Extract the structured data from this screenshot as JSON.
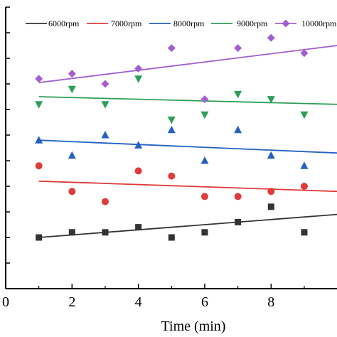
{
  "chart_data": {
    "type": "scatter",
    "title": "",
    "xlabel": "Time (min)",
    "ylabel": "",
    "xlim": [
      0,
      10
    ],
    "ylim": [
      0,
      11
    ],
    "x_ticks": [
      "0",
      "2",
      "4",
      "6",
      "8"
    ],
    "grid": false,
    "legend_position": "top",
    "series": [
      {
        "name": "6000rpm",
        "color": "#333333",
        "marker": "square",
        "x": [
          1,
          2,
          3,
          4,
          5,
          6,
          7,
          8,
          9
        ],
        "y": [
          2.0,
          2.2,
          2.2,
          2.4,
          2.0,
          2.2,
          2.6,
          3.2,
          2.2
        ],
        "fit": [
          2.0,
          2.9
        ]
      },
      {
        "name": "7000rpm",
        "color": "#e03a3a",
        "marker": "circle",
        "x": [
          1,
          2,
          3,
          4,
          5,
          6,
          7,
          8,
          9
        ],
        "y": [
          4.8,
          3.8,
          3.4,
          4.6,
          4.4,
          3.6,
          3.6,
          3.8,
          4.0
        ],
        "fit": [
          4.2,
          3.8
        ]
      },
      {
        "name": "8000rpm",
        "color": "#2361c4",
        "marker": "triangle-up",
        "x": [
          1,
          2,
          3,
          4,
          5,
          6,
          7,
          8,
          9
        ],
        "y": [
          5.8,
          5.2,
          6.0,
          5.6,
          6.2,
          5.0,
          6.2,
          5.2,
          4.8
        ],
        "fit": [
          5.8,
          5.3
        ]
      },
      {
        "name": "9000rpm",
        "color": "#2e9e57",
        "marker": "triangle-down",
        "x": [
          1,
          2,
          3,
          4,
          5,
          6,
          7,
          8,
          9
        ],
        "y": [
          7.2,
          7.8,
          7.2,
          8.2,
          6.6,
          6.8,
          7.6,
          7.4,
          6.8
        ],
        "fit": [
          7.5,
          7.2
        ]
      },
      {
        "name": "10000rpm",
        "color": "#a25fd0",
        "marker": "diamond",
        "x": [
          1,
          2,
          3,
          4,
          5,
          6,
          7,
          8,
          9
        ],
        "y": [
          8.2,
          8.4,
          8.0,
          8.6,
          9.4,
          7.4,
          9.4,
          9.8,
          9.2
        ],
        "fit": [
          8.05,
          9.5
        ]
      }
    ]
  }
}
